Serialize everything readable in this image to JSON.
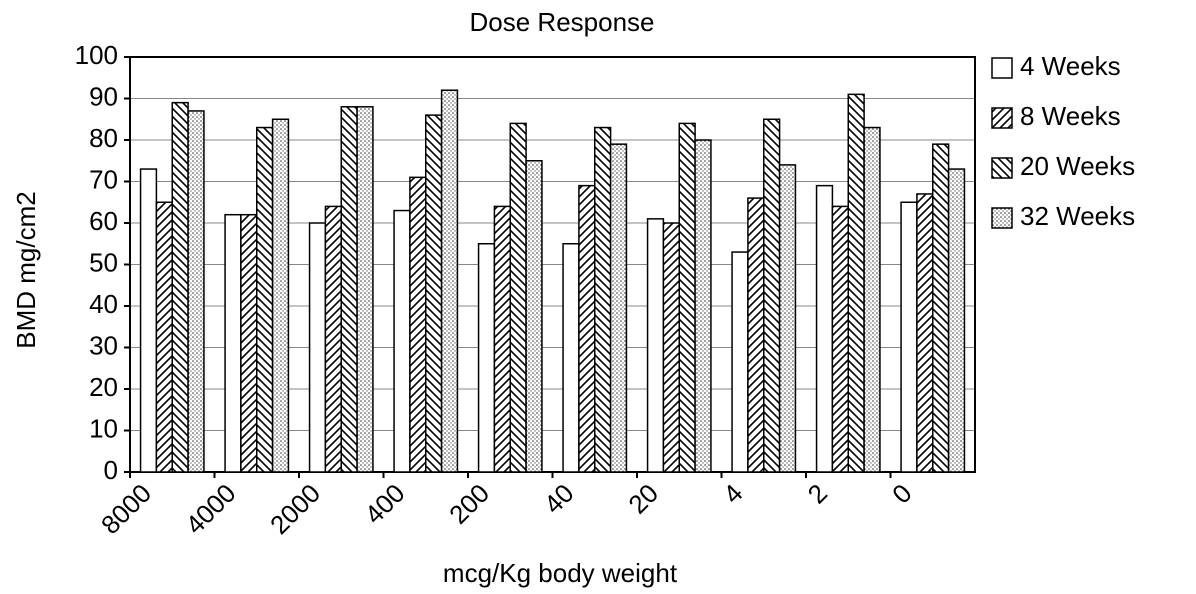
{
  "chart_data": {
    "type": "bar",
    "title": "Dose Response",
    "x_label": "mcg/Kg body weight",
    "y_label": "BMD mg/cm2",
    "categories": [
      "8000",
      "4000",
      "2000",
      "400",
      "200",
      "40",
      "20",
      "4",
      "2",
      "0"
    ],
    "series": [
      {
        "name": "4 Weeks",
        "color": "#ffffff",
        "pattern": "none",
        "values": [
          73,
          62,
          60,
          63,
          55,
          55,
          61,
          53,
          69,
          65
        ]
      },
      {
        "name": "8 Weeks",
        "color": "#ffffff",
        "pattern": "forward-hatch",
        "values": [
          65,
          62,
          64,
          71,
          64,
          69,
          60,
          66,
          64,
          67
        ]
      },
      {
        "name": "20 Weeks",
        "color": "#ffffff",
        "pattern": "back-hatch",
        "values": [
          89,
          83,
          88,
          86,
          84,
          83,
          84,
          85,
          91,
          79
        ]
      },
      {
        "name": "32 Weeks",
        "color": "#ffffff",
        "pattern": "dots",
        "values": [
          87,
          85,
          88,
          92,
          75,
          79,
          80,
          74,
          83,
          73
        ]
      }
    ],
    "ylim": [
      0,
      100
    ],
    "yticks": [
      0,
      10,
      20,
      30,
      40,
      50,
      60,
      70,
      80,
      90,
      100
    ],
    "grid": true,
    "legend": "right"
  }
}
